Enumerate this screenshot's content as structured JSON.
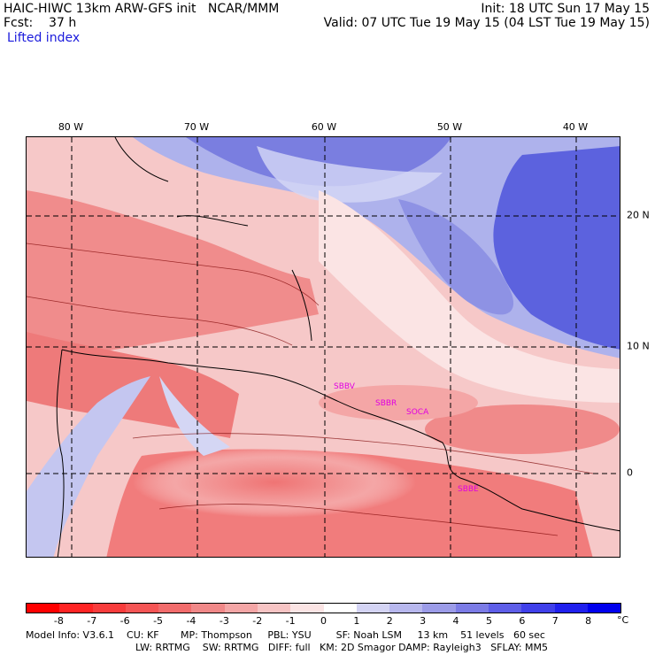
{
  "header": {
    "title": "HAIC-HIWC 13km ARW-GFS init   NCAR/MMM",
    "init": "Init: 18 UTC Sun 17 May 15",
    "fcst_label": "Fcst:    37 h",
    "valid": "Valid: 07 UTC Tue 19 May 15 (04 LST Tue 19 May 15)",
    "field": "Lifted index"
  },
  "map": {
    "lon_labels": [
      "80 W",
      "70 W",
      "60 W",
      "50 W",
      "40 W"
    ],
    "lat_labels": [
      "20 N",
      "10 N",
      "0"
    ],
    "stations": [
      "SBBV",
      "SBBR",
      "SOCA",
      "SBBE"
    ]
  },
  "colorbar": {
    "labels": [
      "-8",
      "-7",
      "-6",
      "-5",
      "-4",
      "-3",
      "-2",
      "-1",
      "0",
      "1",
      "2",
      "3",
      "4",
      "5",
      "6",
      "7",
      "8"
    ],
    "unit": "°C",
    "colors": [
      "#ff0000",
      "#ff2424",
      "#f83c3c",
      "#f55555",
      "#f26c6c",
      "#f08888",
      "#f4a6a6",
      "#f7c4c4",
      "#fbe4e4",
      "#ffffff",
      "#d4d4f4",
      "#b8b8ee",
      "#9c9ce8",
      "#7c7ce6",
      "#5e5ee8",
      "#4040ea",
      "#2020ee",
      "#0000ee"
    ]
  },
  "footer": {
    "line1": "Model Info: V3.6.1    CU: KF       MP: Thompson     PBL: YSU        SF: Noah LSM     13 km    51 levels   60 sec",
    "line2": "LW: RRTMG    SW: RRTMG   DIFF: full   KM: 2D Smagor DAMP: Rayleigh3   SFLAY: MM5"
  }
}
